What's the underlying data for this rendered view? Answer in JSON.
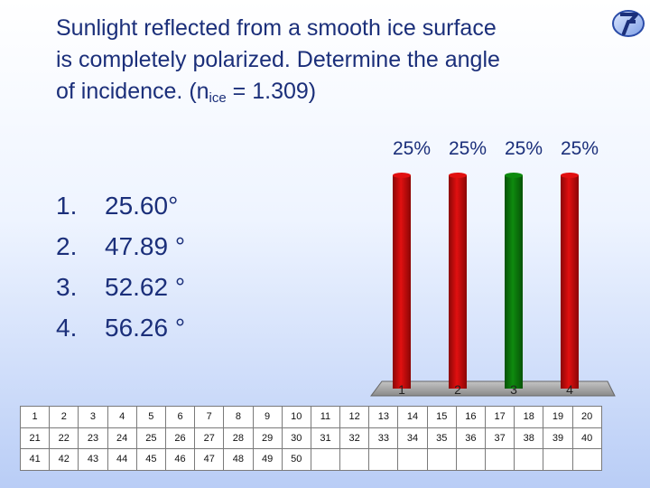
{
  "question": {
    "line1": "Sunlight reflected from a smooth ice surface",
    "line2": "is completely polarized. Determine the angle",
    "line3_pre": "of incidence. (n",
    "line3_sub": "ice",
    "line3_post": " = 1.309)"
  },
  "logo_icon": "turning-point-logo-icon",
  "answers": [
    {
      "num": "1.",
      "text": "25.60°"
    },
    {
      "num": "2.",
      "text": "47.89 °"
    },
    {
      "num": "3.",
      "text": "52.62 °"
    },
    {
      "num": "4.",
      "text": "56.26 °"
    }
  ],
  "chart_data": {
    "type": "bar",
    "categories": [
      "1",
      "2",
      "3",
      "4"
    ],
    "values": [
      25,
      25,
      25,
      25
    ],
    "value_labels": [
      "25%",
      "25%",
      "25%",
      "25%"
    ],
    "ylim": [
      0,
      25
    ],
    "colors": [
      "#e11010",
      "#e11010",
      "#0e8a0e",
      "#e11010"
    ],
    "grid": false
  },
  "keypad": {
    "rows": [
      [
        "1",
        "2",
        "3",
        "4",
        "5",
        "6",
        "7",
        "8",
        "9",
        "10",
        "11",
        "12",
        "13",
        "14",
        "15",
        "16",
        "17",
        "18",
        "19",
        "20"
      ],
      [
        "21",
        "22",
        "23",
        "24",
        "25",
        "26",
        "27",
        "28",
        "29",
        "30",
        "31",
        "32",
        "33",
        "34",
        "35",
        "36",
        "37",
        "38",
        "39",
        "40"
      ],
      [
        "41",
        "42",
        "43",
        "44",
        "45",
        "46",
        "47",
        "48",
        "49",
        "50",
        "",
        "",
        "",
        "",
        "",
        "",
        "",
        "",
        "",
        ""
      ]
    ]
  }
}
